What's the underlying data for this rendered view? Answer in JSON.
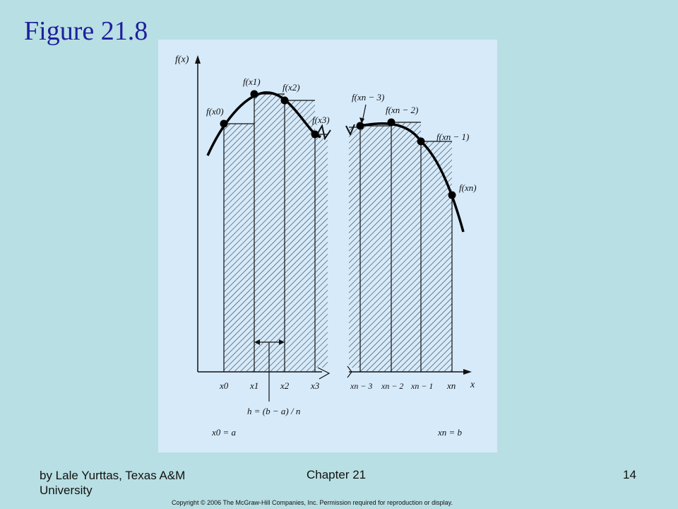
{
  "slide": {
    "title": "Figure 21.8",
    "footer_author": "by Lale Yurttas, Texas A&M University",
    "footer_chapter": "Chapter 21",
    "footer_page": "14",
    "copyright": "Copyright © 2006 The McGraw-Hill Companies, Inc. Permission required for reproduction or display."
  },
  "diagram": {
    "y_axis_label": "f(x)",
    "x_axis_label": "x",
    "point_labels": [
      "f(x0)",
      "f(x1)",
      "f(x2)",
      "f(x3)",
      "f(xn − 3)",
      "f(xn − 2)",
      "f(xn − 1)",
      "f(xn)"
    ],
    "x_tick_labels": [
      "x0",
      "x1",
      "x2",
      "x3",
      "xn − 3",
      "xn − 2",
      "xn − 1",
      "xn"
    ],
    "h_formula": "h = (b − a) / n",
    "start_label": "x0 = a",
    "end_label": "xn = b",
    "colors": {
      "panel": "#d6eafa",
      "ink": "#111111",
      "title": "#1f1f9c"
    }
  }
}
